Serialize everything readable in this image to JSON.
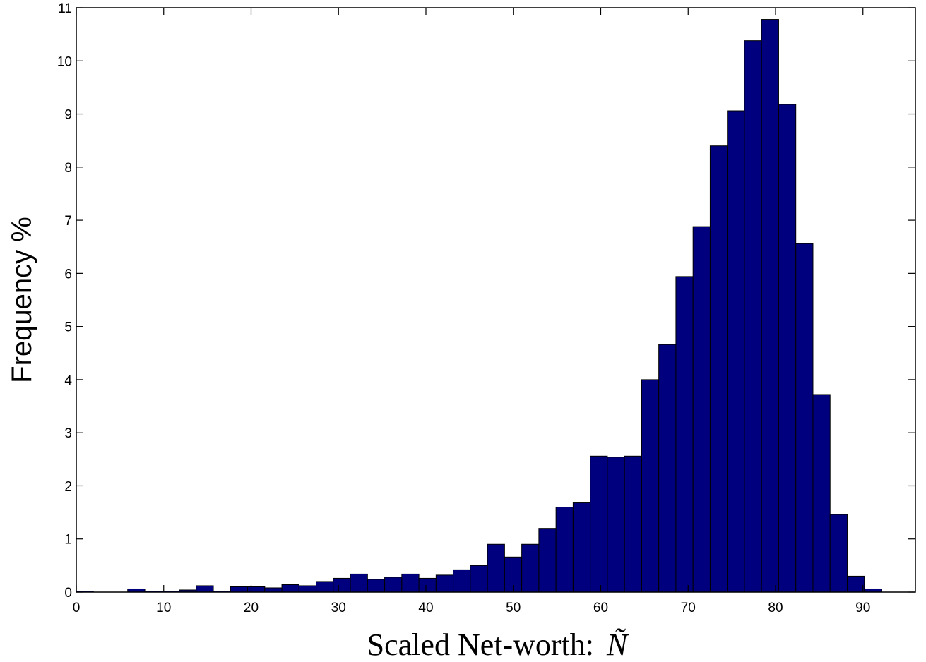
{
  "chart_data": {
    "type": "bar",
    "title": "",
    "xlabel": "Scaled Net-worth:",
    "xlabel_symbol": "Ñ",
    "ylabel": "Frequency %",
    "xlim": [
      0,
      96
    ],
    "ylim": [
      0,
      11
    ],
    "x_ticks": [
      0,
      10,
      20,
      30,
      40,
      50,
      60,
      70,
      80,
      90
    ],
    "y_ticks": [
      0,
      1,
      2,
      3,
      4,
      5,
      6,
      7,
      8,
      9,
      10,
      11
    ],
    "grid": false,
    "bar_color": "#00007f",
    "bin_width": 1.96,
    "bin_edges_start": 0,
    "values": [
      0.02,
      0.0,
      0.0,
      0.06,
      0.02,
      0.02,
      0.04,
      0.12,
      0.02,
      0.1,
      0.1,
      0.08,
      0.14,
      0.12,
      0.2,
      0.26,
      0.34,
      0.24,
      0.28,
      0.34,
      0.26,
      0.32,
      0.42,
      0.5,
      0.9,
      0.66,
      0.9,
      1.2,
      1.6,
      1.68,
      2.56,
      2.54,
      2.56,
      4.0,
      4.66,
      5.94,
      6.88,
      8.4,
      9.06,
      10.38,
      10.78,
      9.18,
      6.56,
      3.72,
      1.46,
      0.3,
      0.06
    ]
  }
}
